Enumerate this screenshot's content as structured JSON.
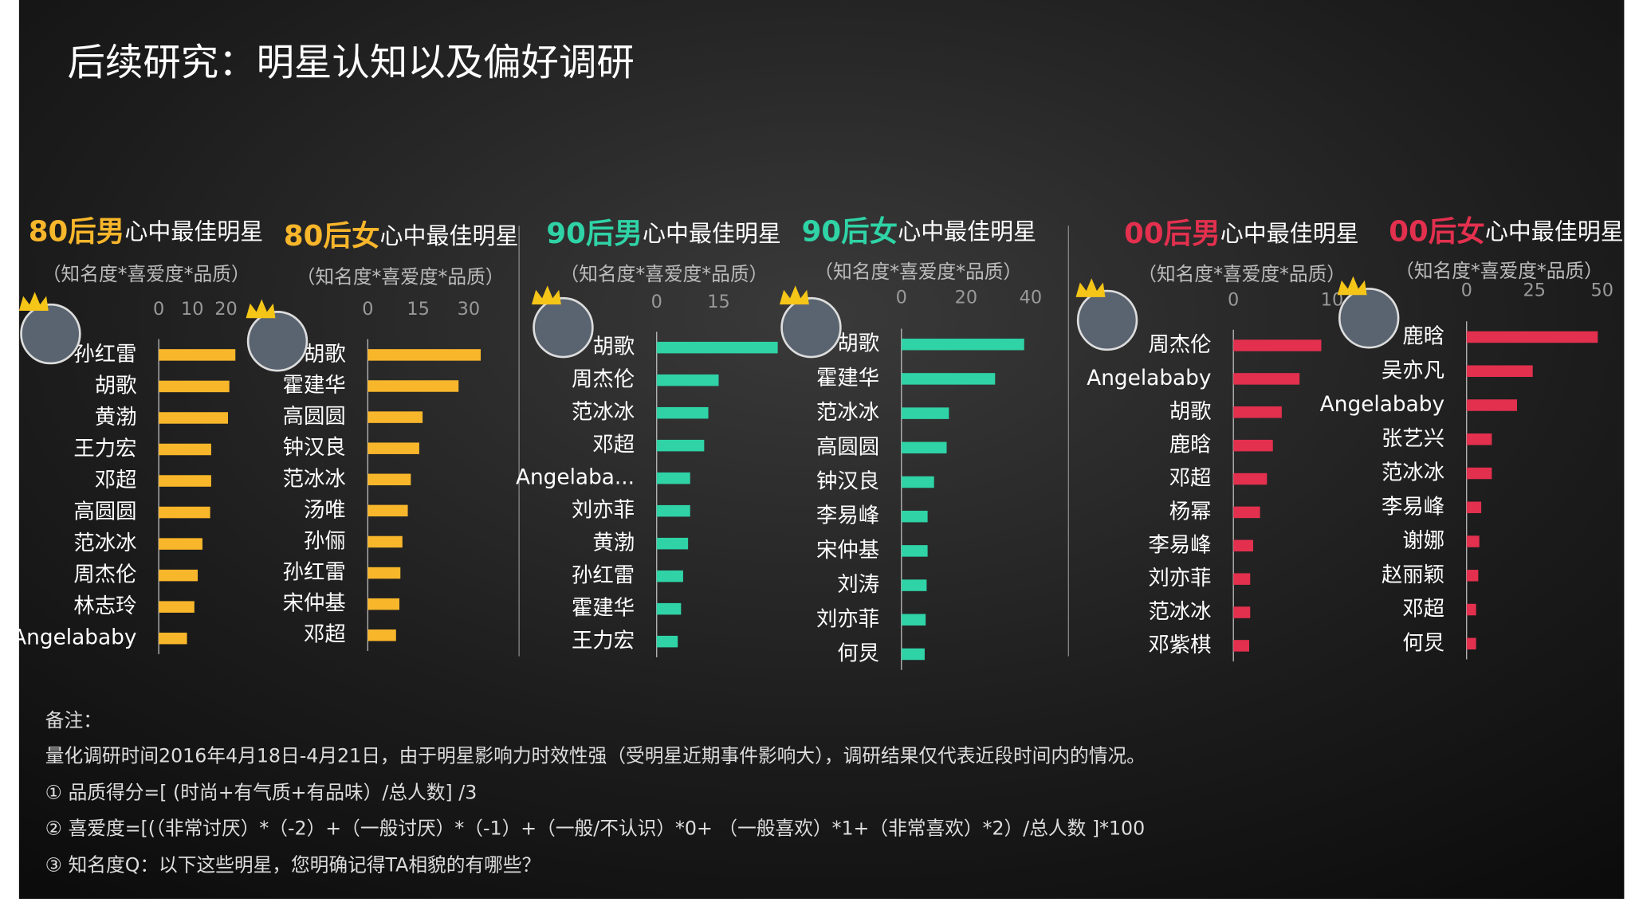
{
  "title": "后续研究：明星认知以及偏好调研",
  "chart_data": [
    {
      "type": "bar",
      "orientation": "horizontal",
      "title_prefix": "80后男",
      "title": "心中最佳明星",
      "subtitle": "（知名度*喜爱度*品质）",
      "color": "#f8b62b",
      "categories": [
        "孙红雷",
        "胡歌",
        "黄渤",
        "王力宏",
        "邓超",
        "高圆圆",
        "范冰冰",
        "周杰伦",
        "林志玲",
        "Angelababy"
      ],
      "values": [
        22.8,
        21,
        20.6,
        15.6,
        15.6,
        15.3,
        13,
        11.6,
        10.6,
        8.4
      ],
      "xlim": [
        0,
        25
      ],
      "xticks": [
        0,
        10,
        20
      ]
    },
    {
      "type": "bar",
      "orientation": "horizontal",
      "title_prefix": "80后女",
      "title": "心中最佳明星",
      "subtitle": "（知名度*喜爱度*品质）",
      "color": "#f8b62b",
      "categories": [
        "胡歌",
        "霍建华",
        "高圆圆",
        "钟汉良",
        "范冰冰",
        "汤唯",
        "孙俪",
        "孙红雷",
        "宋仲基",
        "邓超"
      ],
      "values": [
        33.6,
        27,
        16.3,
        15.3,
        12.8,
        11.9,
        10.3,
        9.7,
        9.4,
        8.4
      ],
      "xlim": [
        0,
        35
      ],
      "xticks": [
        0,
        15,
        30
      ]
    },
    {
      "type": "bar",
      "orientation": "horizontal",
      "title_prefix": "90后男",
      "title": "心中最佳明星",
      "subtitle": "（知名度*喜爱度*品质）",
      "color": "#2fd3a6",
      "categories": [
        "胡歌",
        "周杰伦",
        "范冰冰",
        "邓超",
        "Angelaba...",
        "刘亦菲",
        "黄渤",
        "孙红雷",
        "霍建华",
        "王力宏"
      ],
      "values": [
        29.3,
        15,
        12.5,
        11.5,
        8.1,
        8.1,
        7.6,
        6.4,
        5.9,
        5.1
      ],
      "xlim": [
        0,
        30
      ],
      "xticks": [
        0,
        15
      ]
    },
    {
      "type": "bar",
      "orientation": "horizontal",
      "title_prefix": "90后女",
      "title": "心中最佳明星",
      "subtitle": "（知名度*喜爱度*品质）",
      "color": "#2fd3a6",
      "categories": [
        "胡歌",
        "霍建华",
        "范冰冰",
        "高圆圆",
        "钟汉良",
        "李易峰",
        "宋仲基",
        "刘涛",
        "刘亦菲",
        "何炅"
      ],
      "values": [
        38,
        29,
        14.7,
        14,
        10.1,
        8.1,
        8.1,
        7.8,
        7.5,
        7.2
      ],
      "xlim": [
        0,
        40
      ],
      "xticks": [
        0,
        20,
        40
      ]
    },
    {
      "type": "bar",
      "orientation": "horizontal",
      "title_prefix": "00后男",
      "title": "心中最佳明星",
      "subtitle": "（知名度*喜爱度*品质）",
      "color": "#e2304e",
      "categories": [
        "周杰伦",
        "Angelababy",
        "胡歌",
        "鹿晗",
        "邓超",
        "杨幂",
        "李易峰",
        "刘亦菲",
        "范冰冰",
        "邓紫棋"
      ],
      "values": [
        8.9,
        6.7,
        4.9,
        4,
        3.4,
        2.7,
        2,
        1.7,
        1.7,
        1.6
      ],
      "xlim": [
        0,
        10
      ],
      "xticks": [
        0,
        10
      ]
    },
    {
      "type": "bar",
      "orientation": "horizontal",
      "title_prefix": "00后女",
      "title": "心中最佳明星",
      "subtitle": "（知名度*喜爱度*品质）",
      "color": "#e2304e",
      "categories": [
        "鹿晗",
        "吴亦凡",
        "Angelababy",
        "张艺兴",
        "范冰冰",
        "李易峰",
        "谢娜",
        "赵丽颖",
        "邓超",
        "何炅"
      ],
      "values": [
        48.4,
        24.4,
        18.6,
        9.3,
        9.3,
        5.4,
        4.7,
        4.3,
        3.5,
        3.5
      ],
      "xlim": [
        0,
        50
      ],
      "xticks": [
        0,
        25,
        50
      ]
    }
  ],
  "notes": [
    "备注：",
    "量化调研时间2016年4月18日-4月21日，由于明星影响力时效性强（受明星近期事件影响大），调研结果仅代表近段时间内的情况。",
    "① 品质得分=[ (时尚+有气质+有品味）/总人数] /3",
    "② 喜爱度=[(（非常讨厌）*（-2）+（一般讨厌）*（-1）+（一般/不认识）*0+ （一般喜欢）*1+（非常喜欢）*2）/总人数 ]*100",
    "③ 知名度Q：以下这些明星，您明确记得TA相貌的有哪些？"
  ]
}
